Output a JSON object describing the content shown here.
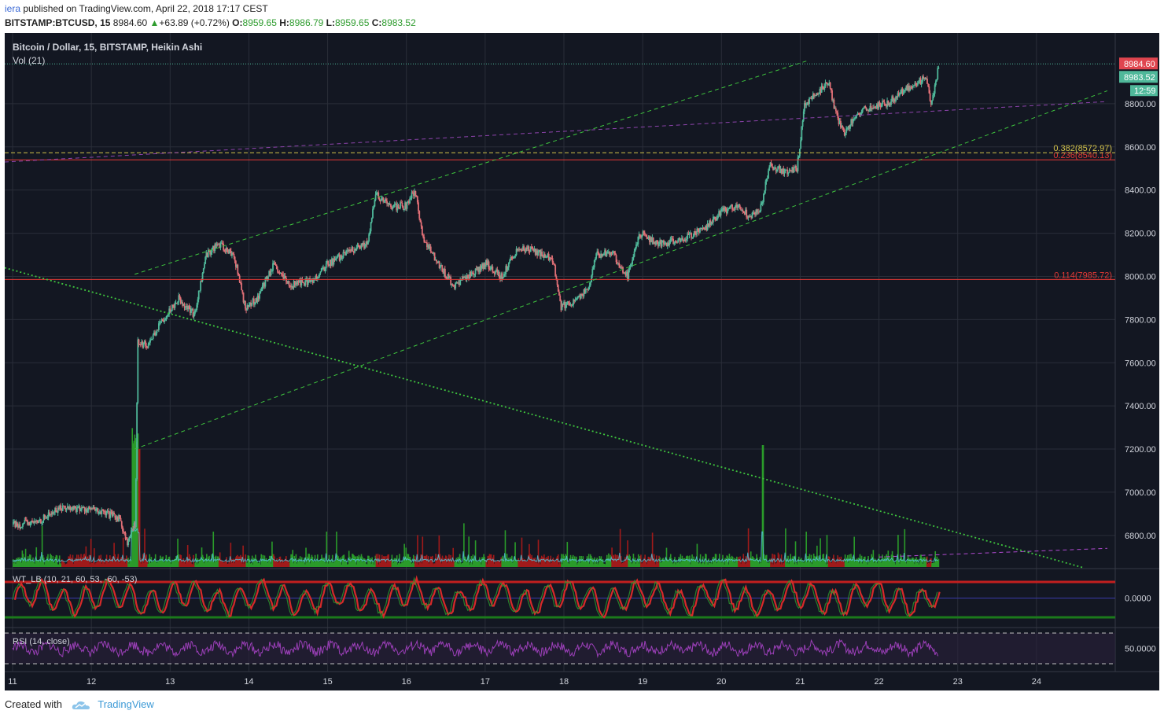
{
  "header": {
    "user": "iera",
    "published": "published on TradingView.com, April 22, 2018 17:17 CEST"
  },
  "quote": {
    "symbol": "BITSTAMP:BTCUSD, 15",
    "price": "8984.60",
    "change": "+63.89 (+0.72%)",
    "o_label": "O:",
    "o": "8959.65",
    "h_label": "H:",
    "h": "8986.79",
    "l_label": "L:",
    "l": "8959.65",
    "c_label": "C:",
    "c": "8983.52"
  },
  "chart_data": {
    "type": "candlestick",
    "title": "Bitcoin / Dollar, 15, BITSTAMP, Heikin Ashi",
    "volume_label": "Vol (21)",
    "wt_label": "WT_LB (10, 21, 60, 53, -60, -53)",
    "rsi_label": "RSI (14, close)",
    "y_ticks": [
      "8800.00",
      "8600.00",
      "8400.00",
      "8200.00",
      "8000.00",
      "7800.00",
      "7600.00",
      "7400.00",
      "7200.00",
      "7000.00",
      "6800.00"
    ],
    "y_tick_values": [
      8800,
      8600,
      8400,
      8200,
      8000,
      7800,
      7600,
      7400,
      7200,
      7000,
      6800
    ],
    "ylim": [
      6650,
      9000
    ],
    "x_ticks": [
      "11",
      "12",
      "13",
      "14",
      "15",
      "16",
      "17",
      "18",
      "19",
      "20",
      "21",
      "22",
      "23",
      "24"
    ],
    "xlim": [
      10.9,
      25.0
    ],
    "wt_tick": "0.0000",
    "rsi_tick": "50.0000",
    "price_badges": {
      "last": "8984.60",
      "close": "8983.52",
      "timer": "12:59"
    },
    "fib_levels": [
      {
        "label": "0.236(8540.13)",
        "value": 8540.13,
        "color": "#e53935"
      },
      {
        "label": "0.382(8572.97)",
        "value": 8572.97,
        "color": "#d4c34a"
      },
      {
        "label": "0.114(7985.72)",
        "value": 7985.72,
        "color": "#e53935"
      }
    ],
    "price_path": [
      [
        11.0,
        6850
      ],
      [
        11.3,
        6860
      ],
      [
        11.6,
        6930
      ],
      [
        12.0,
        6920
      ],
      [
        12.35,
        6880
      ],
      [
        12.45,
        6760
      ],
      [
        12.55,
        6860
      ],
      [
        12.58,
        7700
      ],
      [
        12.7,
        7680
      ],
      [
        12.9,
        7800
      ],
      [
        13.1,
        7900
      ],
      [
        13.3,
        7820
      ],
      [
        13.45,
        8100
      ],
      [
        13.6,
        8150
      ],
      [
        13.8,
        8100
      ],
      [
        13.95,
        7850
      ],
      [
        14.1,
        7900
      ],
      [
        14.3,
        8050
      ],
      [
        14.5,
        7960
      ],
      [
        14.8,
        7980
      ],
      [
        15.0,
        8060
      ],
      [
        15.3,
        8120
      ],
      [
        15.5,
        8150
      ],
      [
        15.6,
        8380
      ],
      [
        15.8,
        8320
      ],
      [
        16.0,
        8330
      ],
      [
        16.1,
        8400
      ],
      [
        16.2,
        8180
      ],
      [
        16.4,
        8060
      ],
      [
        16.6,
        7950
      ],
      [
        16.8,
        8010
      ],
      [
        17.0,
        8060
      ],
      [
        17.2,
        8000
      ],
      [
        17.4,
        8130
      ],
      [
        17.6,
        8120
      ],
      [
        17.85,
        8080
      ],
      [
        17.95,
        7860
      ],
      [
        18.1,
        7880
      ],
      [
        18.3,
        7940
      ],
      [
        18.4,
        8100
      ],
      [
        18.6,
        8110
      ],
      [
        18.8,
        8000
      ],
      [
        18.95,
        8200
      ],
      [
        19.2,
        8150
      ],
      [
        19.5,
        8170
      ],
      [
        19.8,
        8230
      ],
      [
        20.0,
        8300
      ],
      [
        20.2,
        8330
      ],
      [
        20.35,
        8280
      ],
      [
        20.5,
        8320
      ],
      [
        20.6,
        8520
      ],
      [
        20.8,
        8480
      ],
      [
        20.95,
        8500
      ],
      [
        21.05,
        8800
      ],
      [
        21.2,
        8850
      ],
      [
        21.35,
        8900
      ],
      [
        21.45,
        8750
      ],
      [
        21.55,
        8660
      ],
      [
        21.7,
        8750
      ],
      [
        21.9,
        8790
      ],
      [
        22.1,
        8800
      ],
      [
        22.3,
        8860
      ],
      [
        22.5,
        8900
      ],
      [
        22.6,
        8920
      ],
      [
        22.65,
        8780
      ],
      [
        22.75,
        8975
      ]
    ],
    "trendlines": [
      {
        "name": "channel-upper",
        "from": [
          12.55,
          8010
        ],
        "to": [
          21.1,
          9000
        ],
        "color": "#3ec43e",
        "dash": "dashed"
      },
      {
        "name": "channel-lower",
        "from": [
          12.55,
          7200
        ],
        "to": [
          24.9,
          8860
        ],
        "color": "#3ec43e",
        "dash": "dashed"
      },
      {
        "name": "descending",
        "from": [
          10.9,
          8040
        ],
        "to": [
          24.6,
          6650
        ],
        "color": "#3ec43e",
        "dash": "dotted"
      },
      {
        "name": "purple-resistance",
        "from": [
          10.9,
          8530
        ],
        "to": [
          24.9,
          8810
        ],
        "color": "#8e44ad",
        "dash": "dashed"
      },
      {
        "name": "purple-volume",
        "from": [
          22.0,
          6700
        ],
        "to": [
          24.9,
          6740
        ],
        "color": "#b04ad0",
        "dash": "dashed"
      }
    ],
    "grid": true
  },
  "footer": {
    "created_with": "Created with",
    "brand": "TradingView"
  },
  "colors": {
    "background": "#131722",
    "up": "#4fb89a",
    "down": "#e06f76",
    "vol_up": "#2a9b2a",
    "vol_down": "#a01a1a",
    "grid": "#2a2e39",
    "axis_text": "#d1d4dc"
  }
}
